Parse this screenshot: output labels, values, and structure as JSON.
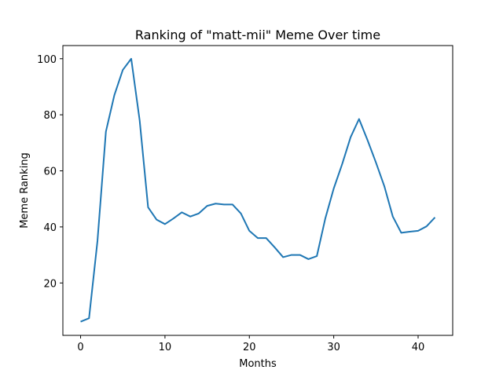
{
  "chart_data": {
    "type": "line",
    "title": "Ranking of \"matt-mii\" Meme Over time",
    "xlabel": "Months",
    "ylabel": "Meme Ranking",
    "xlim": [
      -2.1,
      44.1
    ],
    "ylim": [
      1.3,
      104.7
    ],
    "xticks": [
      0,
      10,
      20,
      30,
      40
    ],
    "yticks": [
      20,
      40,
      60,
      80,
      100
    ],
    "grid": false,
    "line_color": "#1f77b4",
    "x": [
      0,
      1,
      2,
      3,
      4,
      5,
      6,
      7,
      8,
      9,
      10,
      11,
      12,
      13,
      14,
      15,
      16,
      17,
      18,
      19,
      20,
      21,
      22,
      23,
      24,
      25,
      26,
      27,
      28,
      29,
      30,
      31,
      32,
      33,
      34,
      35,
      36,
      37,
      38,
      39,
      40,
      41,
      42
    ],
    "series": [
      {
        "values": [
          6.2,
          7.4,
          35,
          74,
          87,
          96,
          100,
          78,
          47,
          42.6,
          41,
          43,
          45.2,
          43.7,
          44.8,
          47.5,
          48.3,
          48,
          48,
          44.8,
          38.6,
          36,
          36,
          32.7,
          29.2,
          30,
          30,
          28.5,
          29.6,
          43,
          53.7,
          62.4,
          72,
          78.5,
          71,
          63,
          54.5,
          43.7,
          37.9,
          38.3,
          38.6,
          40.2,
          43.4
        ]
      }
    ]
  }
}
